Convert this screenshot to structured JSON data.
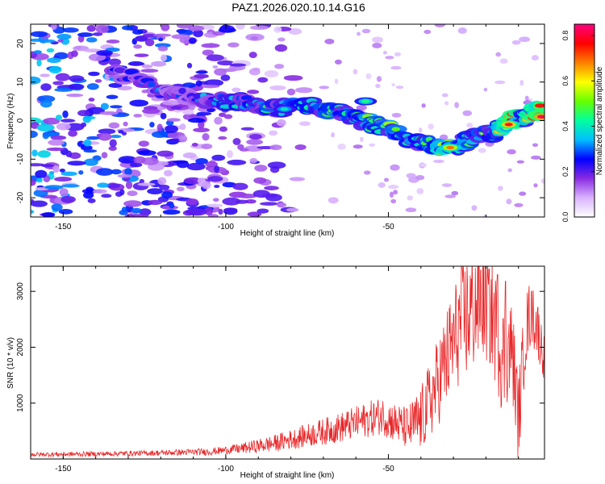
{
  "figure_title": "PAZ1.2026.020.10.14.G16",
  "chart_data": [
    {
      "type": "heatmap",
      "xlabel": "Height of straight line (km)",
      "ylabel": "Frequency (Hz)",
      "xlim": [
        -160,
        -2
      ],
      "ylim": [
        -25,
        25
      ],
      "xticks": [
        -150,
        -100,
        -50
      ],
      "yticks": [
        -20,
        -10,
        0,
        10,
        20
      ],
      "colorbar": {
        "label": "Normalized spectral amplitude",
        "range": [
          0,
          0.85
        ],
        "ticks": [
          "0.0",
          "0.2",
          "0.4",
          "0.6",
          "0.8"
        ],
        "colors": [
          "#ffffff",
          "#d9b3ff",
          "#8a2be2",
          "#0000ff",
          "#00bfff",
          "#00ffa0",
          "#66ff00",
          "#ffff00",
          "#ff8000",
          "#ff0000",
          "#ff0080"
        ]
      },
      "signal_track": [
        {
          "x": -135,
          "f": 13,
          "a": 0.3
        },
        {
          "x": -118,
          "f": 8,
          "a": 0.3
        },
        {
          "x": -105,
          "f": 5,
          "a": 0.35
        },
        {
          "x": -95,
          "f": 5,
          "a": 0.4
        },
        {
          "x": -85,
          "f": 3,
          "a": 0.45
        },
        {
          "x": -75,
          "f": 4,
          "a": 0.45
        },
        {
          "x": -65,
          "f": 2,
          "a": 0.5
        },
        {
          "x": -58,
          "f": 0,
          "a": 0.5
        },
        {
          "x": -50,
          "f": -2,
          "a": 0.5
        },
        {
          "x": -42,
          "f": -5,
          "a": 0.5
        },
        {
          "x": -35,
          "f": -7,
          "a": 0.55
        },
        {
          "x": -30,
          "f": -7,
          "a": 0.65
        },
        {
          "x": -25,
          "f": -5,
          "a": 0.55
        },
        {
          "x": -18,
          "f": -3,
          "a": 0.5
        },
        {
          "x": -13,
          "f": 0,
          "a": 0.75
        },
        {
          "x": -8,
          "f": 1,
          "a": 0.6
        },
        {
          "x": -3,
          "f": 3,
          "a": 0.8
        }
      ],
      "hotspots": [
        {
          "x": -31,
          "f": -7,
          "a": 0.7
        },
        {
          "x": -13,
          "f": -1,
          "a": 0.78
        },
        {
          "x": -3,
          "f": 1,
          "a": 0.82
        },
        {
          "x": -57,
          "f": 5,
          "a": 0.45
        },
        {
          "x": -82,
          "f": 3,
          "a": 0.4
        }
      ],
      "noise_region_x": [
        -160,
        -70
      ],
      "noise_level": 0.12
    },
    {
      "type": "line",
      "xlabel": "Height of straight line (km)",
      "ylabel": "SNR (10 * v/v)",
      "xlim": [
        -160,
        -2
      ],
      "ylim": [
        0,
        3450
      ],
      "xticks": [
        -150,
        -100,
        -50
      ],
      "yticks": [
        1000,
        2000,
        3000
      ],
      "line_color": "#e8282a",
      "series": [
        {
          "name": "SNR",
          "points": [
            [
              -160,
              80
            ],
            [
              -140,
              90
            ],
            [
              -120,
              110
            ],
            [
              -105,
              130
            ],
            [
              -95,
              190
            ],
            [
              -85,
              280
            ],
            [
              -75,
              420
            ],
            [
              -65,
              560
            ],
            [
              -58,
              680
            ],
            [
              -52,
              780
            ],
            [
              -48,
              650
            ],
            [
              -44,
              540
            ],
            [
              -40,
              700
            ],
            [
              -36,
              1200
            ],
            [
              -32,
              1800
            ],
            [
              -28,
              2400
            ],
            [
              -24,
              2700
            ],
            [
              -21,
              2900
            ],
            [
              -18,
              2600
            ],
            [
              -15,
              1800
            ],
            [
              -12,
              2000
            ],
            [
              -10,
              700
            ],
            [
              -8,
              2200
            ],
            [
              -6,
              2700
            ],
            [
              -4,
              2300
            ],
            [
              -2,
              1800
            ]
          ],
          "noise_amplitude": [
            [
              -160,
              40
            ],
            [
              -120,
              50
            ],
            [
              -100,
              70
            ],
            [
              -80,
              180
            ],
            [
              -60,
              300
            ],
            [
              -45,
              380
            ],
            [
              -35,
              800
            ],
            [
              -25,
              1200
            ],
            [
              -15,
              1000
            ],
            [
              -5,
              600
            ],
            [
              -2,
              400
            ]
          ],
          "peak_markers": [
            [
              -19,
              3400
            ],
            [
              -16.5,
              3300
            ],
            [
              -14,
              3180
            ],
            [
              -6,
              3000
            ]
          ]
        }
      ]
    }
  ]
}
